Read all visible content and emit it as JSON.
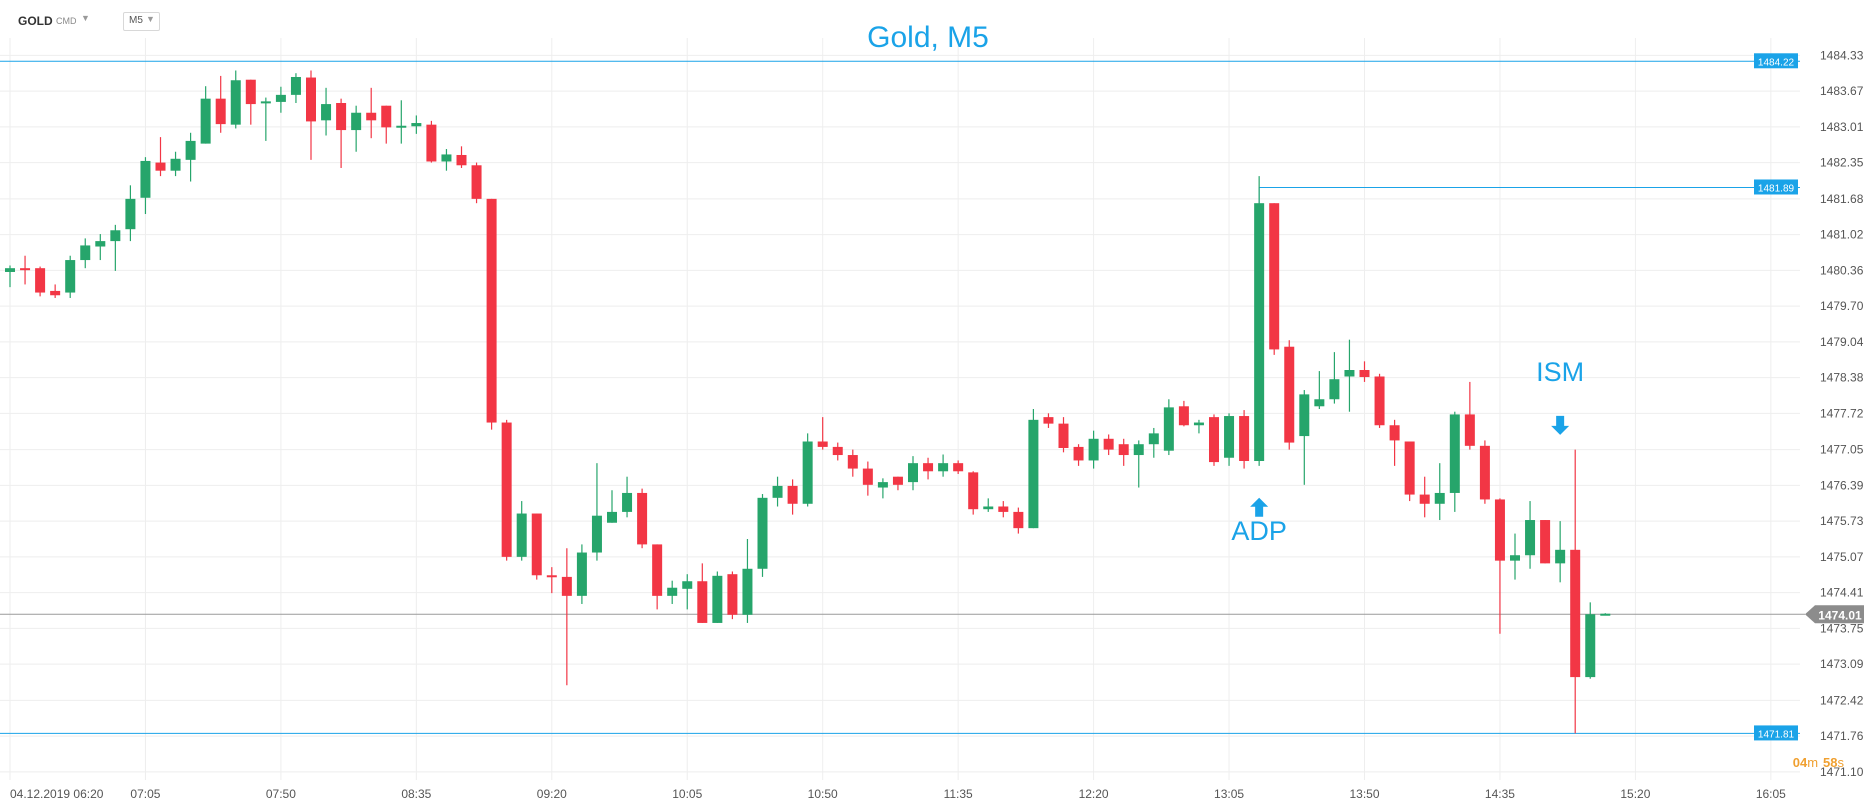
{
  "toolbar": {
    "symbol": "GOLD",
    "symbol_type": "CMD",
    "timeframe": "M5",
    "caret": "▼"
  },
  "countdown": {
    "minutes": "04",
    "m_unit": "m",
    "seconds": "58",
    "s_unit": "s"
  },
  "colors": {
    "bull": "#26a56b",
    "bear": "#f23645",
    "accent": "#1aa3e8",
    "grid": "#eeeeee",
    "axis_text": "#555555",
    "countdown": "#f0a030",
    "current_price_tag": "#8c8c8c"
  },
  "chart_data": {
    "type": "candlestick",
    "title": "Gold, M5",
    "xlabel": "",
    "ylabel": "",
    "ylim": [
      1470.95,
      1484.65
    ],
    "grid": true,
    "y_ticks": [
      "1484.33",
      "1483.67",
      "1483.01",
      "1482.35",
      "1481.68",
      "1481.02",
      "1480.36",
      "1479.70",
      "1479.04",
      "1478.38",
      "1477.72",
      "1477.05",
      "1476.39",
      "1475.73",
      "1475.07",
      "1474.41",
      "1473.75",
      "1473.09",
      "1472.42",
      "1471.76",
      "1471.10"
    ],
    "x_ticks": [
      {
        "index": 0,
        "label": "04.12.2019  06:20"
      },
      {
        "index": 9,
        "label": "07:05"
      },
      {
        "index": 18,
        "label": "07:50"
      },
      {
        "index": 27,
        "label": "08:35"
      },
      {
        "index": 36,
        "label": "09:20"
      },
      {
        "index": 45,
        "label": "10:05"
      },
      {
        "index": 54,
        "label": "10:50"
      },
      {
        "index": 63,
        "label": "11:35"
      },
      {
        "index": 72,
        "label": "12:20"
      },
      {
        "index": 81,
        "label": "13:05"
      },
      {
        "index": 90,
        "label": "13:50"
      },
      {
        "index": 99,
        "label": "14:35"
      },
      {
        "index": 108,
        "label": "15:20"
      },
      {
        "index": 117,
        "label": "16:05"
      }
    ],
    "candles": [
      [
        1480.33,
        1480.45,
        1480.05,
        1480.4
      ],
      [
        1480.4,
        1480.63,
        1480.1,
        1480.37
      ],
      [
        1480.4,
        1480.43,
        1479.88,
        1479.95
      ],
      [
        1479.98,
        1480.1,
        1479.85,
        1479.9
      ],
      [
        1479.95,
        1480.63,
        1479.85,
        1480.55
      ],
      [
        1480.55,
        1480.95,
        1480.4,
        1480.82
      ],
      [
        1480.8,
        1481.03,
        1480.55,
        1480.9
      ],
      [
        1480.9,
        1481.2,
        1480.35,
        1481.1
      ],
      [
        1481.12,
        1481.93,
        1480.9,
        1481.68
      ],
      [
        1481.7,
        1482.45,
        1481.4,
        1482.38
      ],
      [
        1482.35,
        1482.82,
        1482.1,
        1482.2
      ],
      [
        1482.2,
        1482.55,
        1482.1,
        1482.42
      ],
      [
        1482.4,
        1482.9,
        1482.0,
        1482.75
      ],
      [
        1482.7,
        1483.76,
        1482.7,
        1483.53
      ],
      [
        1483.53,
        1483.95,
        1482.9,
        1483.06
      ],
      [
        1483.05,
        1484.05,
        1482.98,
        1483.87
      ],
      [
        1483.88,
        1483.88,
        1483.05,
        1483.43
      ],
      [
        1483.45,
        1483.55,
        1482.75,
        1483.48
      ],
      [
        1483.47,
        1483.75,
        1483.27,
        1483.6
      ],
      [
        1483.6,
        1484.0,
        1483.45,
        1483.93
      ],
      [
        1483.92,
        1484.05,
        1482.4,
        1483.11
      ],
      [
        1483.13,
        1483.73,
        1482.85,
        1483.43
      ],
      [
        1483.45,
        1483.53,
        1482.25,
        1482.95
      ],
      [
        1482.95,
        1483.4,
        1482.55,
        1483.27
      ],
      [
        1483.27,
        1483.73,
        1482.8,
        1483.13
      ],
      [
        1483.4,
        1483.4,
        1482.7,
        1483.0
      ],
      [
        1483.0,
        1483.5,
        1482.7,
        1483.03
      ],
      [
        1483.02,
        1483.22,
        1482.88,
        1483.08
      ],
      [
        1483.05,
        1483.12,
        1482.35,
        1482.37
      ],
      [
        1482.37,
        1482.6,
        1482.2,
        1482.5
      ],
      [
        1482.49,
        1482.65,
        1482.25,
        1482.3
      ],
      [
        1482.3,
        1482.35,
        1481.6,
        1481.68
      ],
      [
        1481.68,
        1481.68,
        1477.42,
        1477.55
      ],
      [
        1477.55,
        1477.6,
        1475.0,
        1475.07
      ],
      [
        1475.07,
        1476.1,
        1475.0,
        1475.87
      ],
      [
        1475.87,
        1475.87,
        1474.65,
        1474.73
      ],
      [
        1474.73,
        1474.88,
        1474.4,
        1474.7
      ],
      [
        1474.7,
        1475.23,
        1472.7,
        1474.35
      ],
      [
        1474.35,
        1475.3,
        1474.2,
        1475.15
      ],
      [
        1475.15,
        1476.8,
        1475.0,
        1475.83
      ],
      [
        1475.7,
        1476.3,
        1475.7,
        1475.9
      ],
      [
        1475.9,
        1476.55,
        1475.8,
        1476.25
      ],
      [
        1476.25,
        1476.33,
        1475.23,
        1475.3
      ],
      [
        1475.3,
        1475.3,
        1474.1,
        1474.35
      ],
      [
        1474.35,
        1474.63,
        1474.2,
        1474.5
      ],
      [
        1474.48,
        1474.75,
        1474.1,
        1474.62
      ],
      [
        1474.62,
        1474.95,
        1473.85,
        1473.85
      ],
      [
        1473.85,
        1474.8,
        1473.85,
        1474.72
      ],
      [
        1474.75,
        1474.8,
        1473.92,
        1474.0
      ],
      [
        1474.0,
        1475.4,
        1473.85,
        1474.85
      ],
      [
        1474.85,
        1476.23,
        1474.7,
        1476.16
      ],
      [
        1476.16,
        1476.55,
        1476.0,
        1476.38
      ],
      [
        1476.38,
        1476.5,
        1475.85,
        1476.05
      ],
      [
        1476.05,
        1477.35,
        1476.0,
        1477.2
      ],
      [
        1477.2,
        1477.65,
        1477.05,
        1477.1
      ],
      [
        1477.1,
        1477.18,
        1476.85,
        1476.95
      ],
      [
        1476.95,
        1477.05,
        1476.55,
        1476.7
      ],
      [
        1476.7,
        1476.83,
        1476.2,
        1476.4
      ],
      [
        1476.35,
        1476.52,
        1476.15,
        1476.45
      ],
      [
        1476.55,
        1476.55,
        1476.3,
        1476.4
      ],
      [
        1476.45,
        1476.93,
        1476.3,
        1476.8
      ],
      [
        1476.8,
        1476.9,
        1476.5,
        1476.65
      ],
      [
        1476.65,
        1476.96,
        1476.55,
        1476.8
      ],
      [
        1476.8,
        1476.85,
        1476.6,
        1476.65
      ],
      [
        1476.63,
        1476.65,
        1475.85,
        1475.95
      ],
      [
        1475.95,
        1476.15,
        1475.9,
        1476.0
      ],
      [
        1476.0,
        1476.1,
        1475.8,
        1475.9
      ],
      [
        1475.9,
        1475.98,
        1475.5,
        1475.6
      ],
      [
        1475.6,
        1477.8,
        1475.6,
        1477.6
      ],
      [
        1477.65,
        1477.72,
        1477.45,
        1477.53
      ],
      [
        1477.53,
        1477.65,
        1477.0,
        1477.08
      ],
      [
        1477.1,
        1477.15,
        1476.75,
        1476.85
      ],
      [
        1476.85,
        1477.4,
        1476.7,
        1477.25
      ],
      [
        1477.25,
        1477.33,
        1476.95,
        1477.05
      ],
      [
        1477.15,
        1477.25,
        1476.75,
        1476.95
      ],
      [
        1476.95,
        1477.22,
        1476.35,
        1477.15
      ],
      [
        1477.15,
        1477.45,
        1476.9,
        1477.35
      ],
      [
        1477.03,
        1477.98,
        1476.95,
        1477.83
      ],
      [
        1477.85,
        1477.95,
        1477.48,
        1477.5
      ],
      [
        1477.5,
        1477.6,
        1477.35,
        1477.55
      ],
      [
        1477.65,
        1477.7,
        1476.75,
        1476.82
      ],
      [
        1476.9,
        1477.72,
        1476.75,
        1477.67
      ],
      [
        1477.67,
        1477.78,
        1476.7,
        1476.84
      ],
      [
        1476.84,
        1482.1,
        1476.75,
        1481.6
      ],
      [
        1481.6,
        1481.6,
        1478.8,
        1478.9
      ],
      [
        1478.95,
        1479.07,
        1477.05,
        1477.18
      ],
      [
        1477.3,
        1478.15,
        1476.4,
        1478.07
      ],
      [
        1477.85,
        1478.5,
        1477.8,
        1477.98
      ],
      [
        1477.98,
        1478.85,
        1477.9,
        1478.35
      ],
      [
        1478.4,
        1479.08,
        1477.75,
        1478.52
      ],
      [
        1478.52,
        1478.68,
        1478.3,
        1478.39
      ],
      [
        1478.4,
        1478.45,
        1477.45,
        1477.5
      ],
      [
        1477.5,
        1477.6,
        1476.75,
        1477.22
      ],
      [
        1477.2,
        1477.2,
        1476.1,
        1476.22
      ],
      [
        1476.22,
        1476.55,
        1475.8,
        1476.05
      ],
      [
        1476.05,
        1476.8,
        1475.75,
        1476.25
      ],
      [
        1476.25,
        1477.75,
        1475.9,
        1477.7
      ],
      [
        1477.7,
        1478.3,
        1477.05,
        1477.12
      ],
      [
        1477.12,
        1477.22,
        1476.05,
        1476.13
      ],
      [
        1476.13,
        1476.15,
        1473.65,
        1475.0
      ],
      [
        1475.0,
        1475.5,
        1474.65,
        1475.1
      ],
      [
        1475.1,
        1476.1,
        1474.85,
        1475.75
      ],
      [
        1475.75,
        1475.75,
        1474.95,
        1474.95
      ],
      [
        1474.95,
        1475.73,
        1474.6,
        1475.2
      ],
      [
        1475.2,
        1477.05,
        1471.81,
        1472.85
      ],
      [
        1472.85,
        1474.23,
        1472.82,
        1474.01
      ],
      [
        1474.01,
        1474.03,
        1473.99,
        1474.02
      ]
    ],
    "levels": [
      {
        "price": 1484.22,
        "label": "1484.22"
      },
      {
        "price": 1481.89,
        "label": "1481.89"
      },
      {
        "price": 1471.81,
        "label": "1471.81"
      }
    ],
    "current_price": {
      "price": 1474.01,
      "label": "1474.01"
    },
    "annotations": [
      {
        "text": "ADP",
        "index": 83,
        "price": 1475.57,
        "direction": "up"
      },
      {
        "text": "ISM",
        "index": 103,
        "price": 1478.32,
        "direction": "down"
      }
    ]
  }
}
